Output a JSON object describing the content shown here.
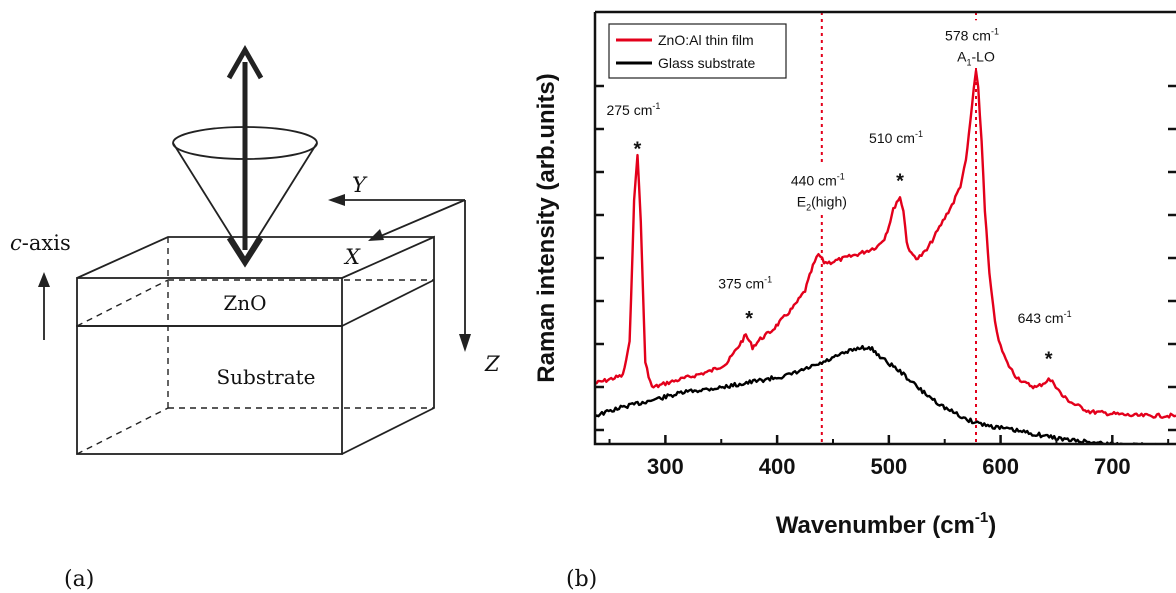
{
  "panel_a": {
    "label": "(a)",
    "axis_text": "c-axis",
    "axis_italic": "c",
    "axis_rest": "-axis",
    "top_layer": "ZnO",
    "bottom_layer": "Substrate",
    "axes": {
      "x": "X",
      "y": "Y",
      "z": "Z"
    }
  },
  "panel_b": {
    "label": "(b)"
  },
  "chart_data": {
    "type": "line",
    "xlabel": "Wavenumber (cm",
    "xlabel_sup": "-1",
    "xlabel_end": ")",
    "ylabel": "Raman intensity (arb.units)",
    "xlim": [
      237,
      757
    ],
    "ylim": [
      0,
      1.07
    ],
    "x_ticks": [
      300,
      400,
      500,
      600,
      700
    ],
    "x_tick_labels": [
      "300",
      "400",
      "500",
      "600",
      "700"
    ],
    "y_ticks_labeled": false,
    "grid": false,
    "legend_position": "top-left",
    "colors": {
      "film": "#e3001b",
      "glass": "#000000",
      "marker": "#e3001b"
    },
    "series": [
      {
        "name": "ZnO:Al thin film",
        "key": "film",
        "x": [
          237,
          250,
          262,
          268,
          272,
          275,
          278,
          282,
          288,
          295,
          300,
          320,
          340,
          355,
          365,
          372,
          378,
          385,
          395,
          405,
          415,
          425,
          432,
          437,
          442,
          448,
          460,
          472,
          482,
          490,
          496,
          500,
          504,
          507,
          510,
          513,
          516,
          520,
          526,
          534,
          542,
          550,
          558,
          564,
          569,
          573,
          576,
          578,
          580,
          583,
          586,
          590,
          595,
          600,
          606,
          613,
          622,
          632,
          638,
          643,
          648,
          655,
          665,
          680,
          700,
          720,
          740,
          757
        ],
        "y": [
          0.15,
          0.16,
          0.17,
          0.25,
          0.6,
          0.72,
          0.55,
          0.2,
          0.14,
          0.145,
          0.15,
          0.165,
          0.18,
          0.2,
          0.24,
          0.27,
          0.24,
          0.26,
          0.28,
          0.31,
          0.34,
          0.38,
          0.44,
          0.47,
          0.45,
          0.45,
          0.46,
          0.47,
          0.48,
          0.49,
          0.51,
          0.54,
          0.58,
          0.6,
          0.61,
          0.58,
          0.5,
          0.47,
          0.46,
          0.48,
          0.52,
          0.56,
          0.6,
          0.64,
          0.7,
          0.8,
          0.88,
          0.92,
          0.88,
          0.75,
          0.58,
          0.42,
          0.3,
          0.24,
          0.2,
          0.17,
          0.15,
          0.14,
          0.15,
          0.16,
          0.15,
          0.12,
          0.1,
          0.08,
          0.075,
          0.07,
          0.07,
          0.07
        ]
      },
      {
        "name": "Glass substrate",
        "key": "glass",
        "x": [
          237,
          260,
          290,
          320,
          350,
          380,
          410,
          440,
          460,
          475,
          485,
          495,
          510,
          530,
          550,
          570,
          590,
          610,
          630,
          660,
          700,
          740,
          757
        ],
        "y": [
          0.07,
          0.09,
          0.11,
          0.13,
          0.14,
          0.155,
          0.17,
          0.2,
          0.225,
          0.24,
          0.235,
          0.21,
          0.18,
          0.13,
          0.09,
          0.06,
          0.045,
          0.035,
          0.025,
          0.01,
          0.0,
          -0.005,
          -0.005
        ]
      }
    ],
    "legend_entries": [
      "ZnO:Al thin film",
      "Glass substrate"
    ],
    "reference_lines": [
      {
        "x": 440
      },
      {
        "x": 578
      }
    ],
    "peak_markers": [
      {
        "x": 275,
        "y": 0.72
      },
      {
        "x": 375,
        "y": 0.3
      },
      {
        "x": 510,
        "y": 0.64
      },
      {
        "x": 643,
        "y": 0.2
      }
    ],
    "annotations": [
      {
        "line1": "275 cm",
        "sup1": "-1",
        "line2": "",
        "x": 275,
        "y": 0.815
      },
      {
        "line1": "375 cm",
        "sup1": "-1",
        "line2": "",
        "x": 375,
        "y": 0.385
      },
      {
        "line1": "440 cm",
        "sup1": "-1",
        "line2": "E",
        "sub2": "2",
        "rest2": "(high)",
        "x": 440,
        "y": 0.64
      },
      {
        "line1": "510 cm",
        "sup1": "-1",
        "line2": "",
        "x": 510,
        "y": 0.745
      },
      {
        "line1": "578 cm",
        "sup1": "-1",
        "line2": "A",
        "sub2": "1",
        "rest2": "-LO",
        "x": 578,
        "y": 1.0
      },
      {
        "line1": "643 cm",
        "sup1": "-1",
        "line2": "",
        "x": 643,
        "y": 0.3
      }
    ],
    "star_symbol": "*"
  }
}
